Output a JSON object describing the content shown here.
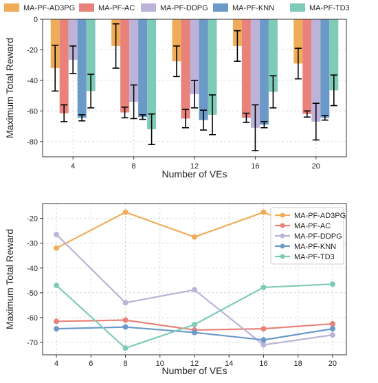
{
  "chart_data": [
    {
      "type": "bar",
      "xlabel": "Number of VEs",
      "ylabel": "Maximum Total Reward",
      "categories": [
        "4",
        "8",
        "12",
        "16",
        "20"
      ],
      "ylim": [
        -90,
        0
      ],
      "yticks": [
        0,
        -20,
        -40,
        -60,
        -80
      ],
      "grid": true,
      "legend_position": "top (above plot)",
      "series": [
        {
          "name": "MA-PF-AD3PG",
          "color": "#f0ad59",
          "values": [
            -32,
            -17.5,
            -27.5,
            -17.5,
            -29
          ],
          "err": [
            15,
            14.5,
            10,
            10,
            10
          ]
        },
        {
          "name": "MA-PF-AC",
          "color": "#e8827a",
          "values": [
            -61.5,
            -61,
            -65,
            -64.5,
            -62
          ],
          "err": [
            5.5,
            3.5,
            6,
            3,
            2
          ]
        },
        {
          "name": "MA-PF-DDPG",
          "color": "#bdb2d8",
          "values": [
            -26.5,
            -54,
            -49,
            -71,
            -67
          ],
          "err": [
            9,
            11,
            9,
            15,
            12
          ]
        },
        {
          "name": "MA-PF-KNN",
          "color": "#6b9ac9",
          "values": [
            -64.5,
            -64,
            -66,
            -69,
            -64.5
          ],
          "err": [
            2,
            1.5,
            6.5,
            2,
            1.5
          ]
        },
        {
          "name": "MA-PF-TD3",
          "color": "#7ecbb8",
          "values": [
            -47,
            -72,
            -62.5,
            -47.5,
            -46.5
          ],
          "err": [
            11,
            10,
            13,
            10.5,
            10
          ]
        }
      ]
    },
    {
      "type": "line",
      "xlabel": "Number of VEs",
      "ylabel": "Maximum Total Reward",
      "x": [
        4,
        8,
        12,
        16,
        20
      ],
      "xlim": [
        3.2,
        20.8
      ],
      "xticks": [
        4,
        6,
        8,
        10,
        12,
        14,
        16,
        18,
        20
      ],
      "ylim": [
        -75,
        -14
      ],
      "yticks": [
        -20,
        -30,
        -40,
        -50,
        -60,
        -70
      ],
      "grid": true,
      "legend_position": "top-right",
      "series": [
        {
          "name": "MA-PF-AD3PG",
          "color": "#f0ad59",
          "values": [
            -32,
            -17.5,
            -27.5,
            -17.5,
            -29
          ]
        },
        {
          "name": "MA-PF-AC",
          "color": "#e8827a",
          "values": [
            -61.5,
            -61,
            -65,
            -64.5,
            -62.5
          ]
        },
        {
          "name": "MA-PF-DDPG",
          "color": "#bdb2d8",
          "values": [
            -26.5,
            -54,
            -48.8,
            -71,
            -67
          ]
        },
        {
          "name": "MA-PF-KNN",
          "color": "#6b9ac9",
          "values": [
            -64.5,
            -63.8,
            -66,
            -69,
            -64.5
          ]
        },
        {
          "name": "MA-PF-TD3",
          "color": "#7ecbb8",
          "values": [
            -47,
            -72.3,
            -62.8,
            -47.8,
            -46.5
          ]
        }
      ]
    }
  ]
}
